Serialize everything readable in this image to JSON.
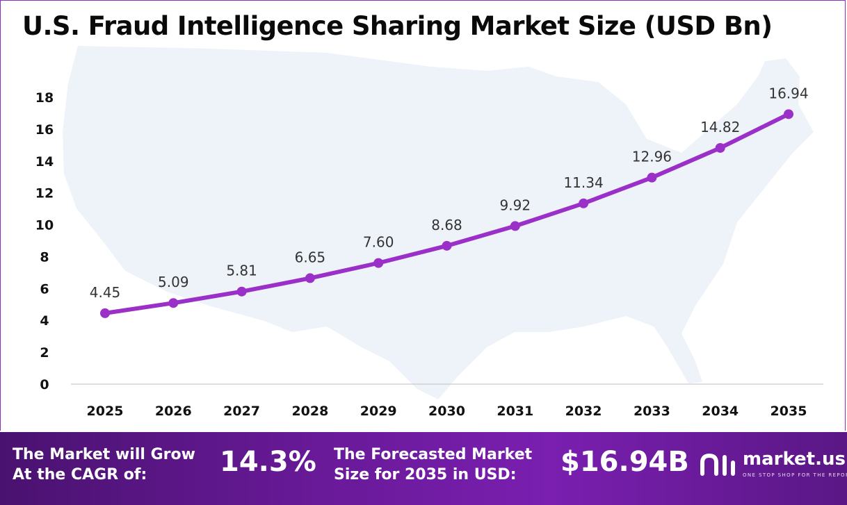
{
  "title": "U.S. Fraud Intelligence Sharing Market Size (USD Bn)",
  "chart_data": {
    "type": "line",
    "title": "U.S. Fraud Intelligence Sharing Market Size (USD Bn)",
    "categories": [
      "2025",
      "2026",
      "2027",
      "2028",
      "2029",
      "2030",
      "2031",
      "2032",
      "2033",
      "2034",
      "2035"
    ],
    "series": [
      {
        "values": [
          4.45,
          5.09,
          5.81,
          6.65,
          7.6,
          8.68,
          9.92,
          11.34,
          12.96,
          14.82,
          16.94
        ]
      }
    ],
    "data_labels": [
      "4.45",
      "5.09",
      "5.81",
      "6.65",
      "7.60",
      "8.68",
      "9.92",
      "11.34",
      "12.96",
      "14.82",
      "16.94"
    ],
    "yticks": [
      0,
      2,
      4,
      6,
      8,
      10,
      12,
      14,
      16,
      18
    ],
    "ylim": [
      0,
      18
    ],
    "grid": false,
    "legend": "none",
    "line_color": "#9b30c8",
    "background_map": "united-states-map"
  },
  "footer": {
    "cagr_label_line1": "The Market will Grow",
    "cagr_label_line2": "At the CAGR of:",
    "cagr_value": "14.3%",
    "forecast_label_line1": "The Forecasted Market",
    "forecast_label_line2": "Size for 2035 in USD:",
    "forecast_value": "$16.94B",
    "brand_name": "market.us",
    "brand_tagline": "ONE STOP SHOP FOR THE REPORTS",
    "brand_icon": "market-us-logo-icon"
  },
  "colors": {
    "accent": "#9b30c8",
    "footer_start": "#4a1270",
    "footer_end": "#7a1fb0",
    "map": "#eef2f9"
  }
}
